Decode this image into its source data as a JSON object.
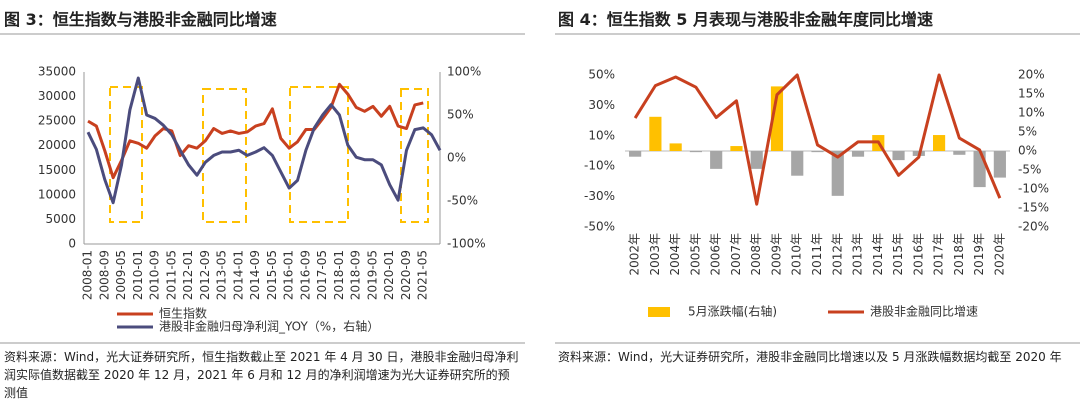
{
  "chart_data": [
    {
      "type": "line",
      "title": "图 3：恒生指数与港股非金融同比增速",
      "categories": [
        "2008-01",
        null,
        "2008-09",
        null,
        "2009-05",
        null,
        "2010-01",
        null,
        "2010-09",
        null,
        "2011-05",
        null,
        "2012-01",
        null,
        "2012-09",
        null,
        "2013-05",
        null,
        "2014-01",
        null,
        "2014-09",
        null,
        "2015-05",
        null,
        "2016-01",
        null,
        "2016-09",
        null,
        "2017-05",
        null,
        "2018-01",
        null,
        "2018-09",
        null,
        "2019-05",
        null,
        "2020-01",
        null,
        "2020-09",
        null,
        "2021-05",
        null,
        null
      ],
      "series": [
        {
          "name": "恒生指数",
          "type": "line",
          "color": "#c8401f",
          "values": [
            25000,
            24000,
            19000,
            13500,
            17000,
            21000,
            20500,
            19500,
            22000,
            23500,
            23000,
            18000,
            20000,
            19500,
            21000,
            23500,
            22500,
            23000,
            22500,
            22800,
            24000,
            24500,
            27500,
            21500,
            19500,
            20800,
            23300,
            23300,
            25500,
            27800,
            32500,
            30500,
            27800,
            27000,
            28000,
            26000,
            28000,
            24000,
            23500,
            28300,
            28700,
            null,
            null
          ]
        },
        {
          "name": "港股非金融归母净利润_YOY（%，右轴）",
          "type": "line",
          "axis": "y2",
          "color": "#4b4c7d",
          "values": [
            30,
            10,
            -25,
            -52,
            -8,
            56,
            93,
            50,
            46,
            38,
            27,
            9,
            -8,
            -20,
            -5,
            3,
            7,
            7,
            9,
            3,
            7,
            12,
            3,
            -16,
            -35,
            -26,
            9,
            35,
            50,
            62,
            50,
            15,
            1,
            -2,
            -2,
            -8,
            -31,
            -49,
            9,
            33,
            35,
            27,
            9
          ]
        }
      ],
      "ylim": [
        0,
        35000
      ],
      "yticks": [
        0,
        5000,
        10000,
        15000,
        20000,
        25000,
        30000,
        35000
      ],
      "y2lim": [
        -100,
        100
      ],
      "y2ticks": [
        {
          "value": -100,
          "label": "-100%"
        },
        {
          "value": -50,
          "label": "-50%"
        },
        {
          "value": 0,
          "label": "0%"
        },
        {
          "value": 50,
          "label": "50%"
        },
        {
          "value": 100,
          "label": "100%"
        }
      ],
      "source": "资料来源：Wind，光大证券研究所，恒生指数截止至 2021 年 4 月 30 日，港股非金融归母净利润实际值数据截至 2020 年 12 月，2021 年 6 月和 12 月的净利润增速为光大证券研究所的预测值"
    },
    {
      "type": "bar",
      "title": "图 4：恒生指数 5 月表现与港股非金融年度同比增速",
      "categories": [
        "2002年",
        "2003年",
        "2004年",
        "2005年",
        "2006年",
        "2007年",
        "2008年",
        "2009年",
        "2010年",
        "2011年",
        "2012年",
        "2013年",
        "2014年",
        "2015年",
        "2016年",
        "2017年",
        "2018年",
        "2019年",
        "2020年"
      ],
      "series": [
        {
          "name": "5月涨跌幅(右轴)",
          "type": "bar",
          "axis": "y2",
          "color": "#ffc000",
          "negative_color": "#a6a6a6",
          "values": [
            -1.5,
            9,
            2,
            -0.3,
            -4.7,
            1.3,
            -4.7,
            17,
            -6.5,
            -0.3,
            -11.8,
            -1.5,
            4.2,
            -2.4,
            -1.3,
            4.2,
            -1,
            -9.5,
            -7
          ]
        },
        {
          "name": "港股非金融同比增速",
          "type": "line",
          "color": "#c8401f",
          "values": [
            21.7,
            43,
            48.7,
            42,
            22,
            33,
            -35,
            37,
            50,
            4,
            -4,
            6,
            6,
            -16,
            -4,
            50,
            8.5,
            0.7,
            -31
          ]
        }
      ],
      "ylim": [
        -50,
        50
      ],
      "yticks": [
        {
          "value": -50,
          "label": "-50%"
        },
        {
          "value": -30,
          "label": "-30%"
        },
        {
          "value": -10,
          "label": "-10%"
        },
        {
          "value": 10,
          "label": "10%"
        },
        {
          "value": 30,
          "label": "30%"
        },
        {
          "value": 50,
          "label": "50%"
        }
      ],
      "y2lim": [
        -20,
        20
      ],
      "y2ticks": [
        {
          "value": -20,
          "label": "-20%"
        },
        {
          "value": -15,
          "label": "-15%"
        },
        {
          "value": -10,
          "label": "-10%"
        },
        {
          "value": -5,
          "label": "-5%"
        },
        {
          "value": 0,
          "label": "0%"
        },
        {
          "value": 5,
          "label": "5%"
        },
        {
          "value": 10,
          "label": "10%"
        },
        {
          "value": 15,
          "label": "15%"
        },
        {
          "value": 20,
          "label": "20%"
        }
      ],
      "source": "资料来源：Wind，光大证券研究所，港股非金融同比增速以及 5 月涨跌幅数据均截至 2020 年"
    }
  ]
}
